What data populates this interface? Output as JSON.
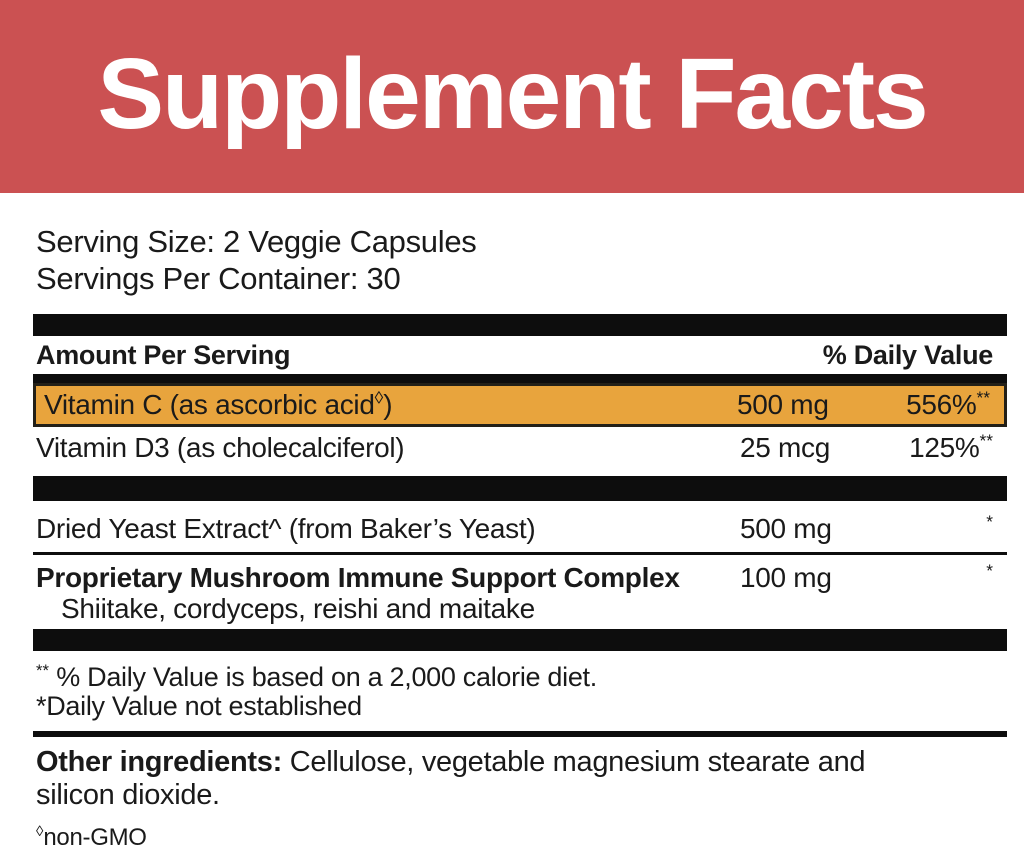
{
  "banner": {
    "title": "Supplement Facts",
    "bg_color": "#CB5152",
    "text_color": "#FFFFFF"
  },
  "serving": {
    "size": "Serving Size: 2 Veggie Capsules",
    "per_container": "Servings Per Container: 30"
  },
  "table": {
    "header": {
      "amount_label": "Amount Per Serving",
      "daily_value_label": "% Daily Value"
    },
    "rows": [
      {
        "name": "Vitamin C (as ascorbic acid",
        "name_sup": "◊",
        "name_end": ")",
        "amount": "500 mg",
        "dv": "556%",
        "dv_sup": "**",
        "highlight_color": "#E8A43D"
      },
      {
        "name": "Vitamin D3 (as cholecalciferol)",
        "amount": "25 mcg",
        "dv": "125%",
        "dv_sup": "**"
      },
      {
        "name": "Dried Yeast Extract^ (from Baker’s Yeast)",
        "amount": "500 mg",
        "dv": "",
        "dv_sup": "*"
      },
      {
        "name": "Proprietary Mushroom Immune Support Complex",
        "sub": "Shiitake, cordyceps, reishi and maitake",
        "amount": "100 mg",
        "dv": "",
        "dv_sup": "*"
      }
    ]
  },
  "footnotes": {
    "dv_basis_sup": "**",
    "dv_basis": " % Daily Value is based on a 2,000 calorie diet.",
    "not_established": "*Daily Value not established"
  },
  "other_ingredients": {
    "label": "Other ingredients:",
    "text": " Cellulose, vegetable magnesium stearate and silicon dioxide."
  },
  "non_gmo": {
    "sup": "◊",
    "text": "non-GMO"
  },
  "colors": {
    "banner_bg": "#CB5152",
    "highlight_bg": "#E8A43D",
    "bar": "#0D0D0D",
    "text": "#1A1A1A"
  }
}
